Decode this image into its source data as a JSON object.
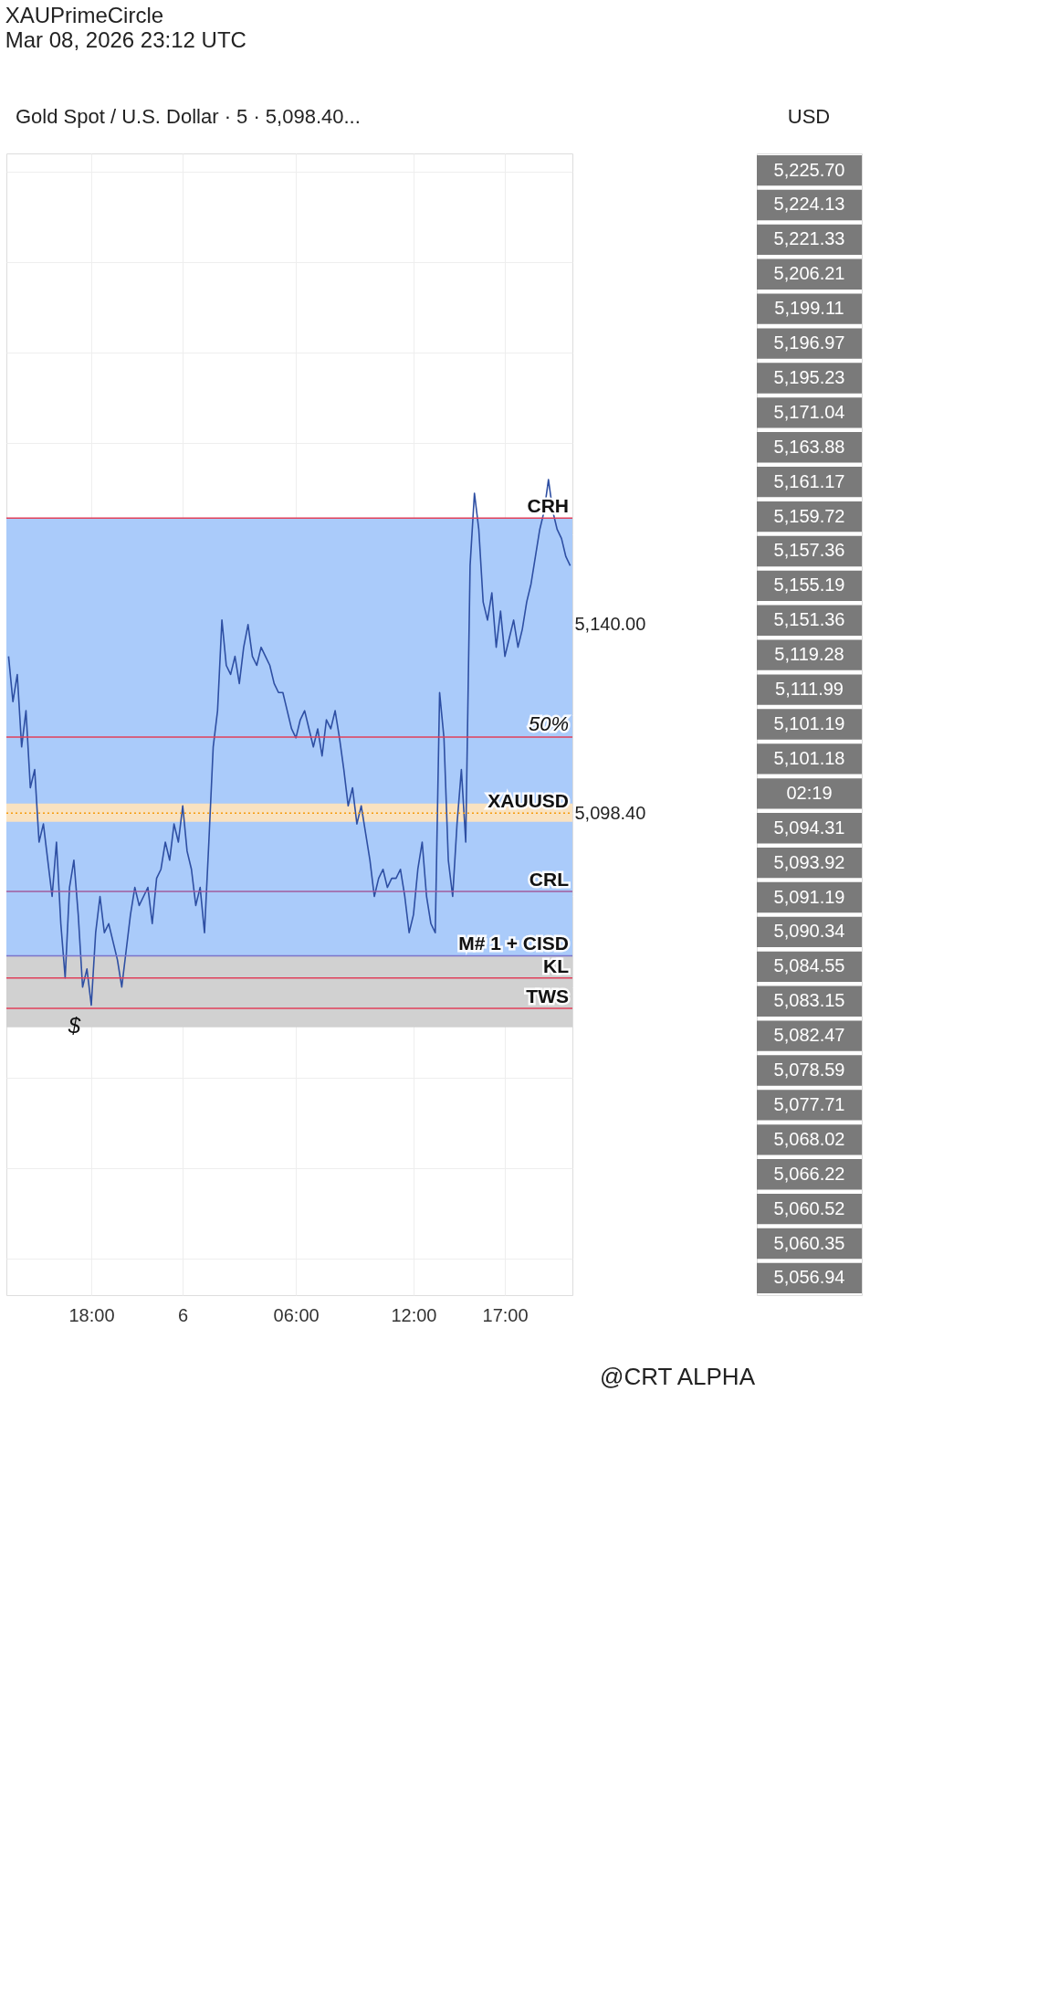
{
  "chart_data": {
    "type": "line",
    "title": "XAUPrimeCircle",
    "subtitle": "Mar 08, 2026 23:12 UTC",
    "categories": [
      null,
      null,
      null,
      null,
      null,
      null,
      null,
      null,
      null,
      null,
      null,
      null,
      null,
      null,
      null,
      null,
      null,
      null,
      null,
      "18:00",
      null,
      null,
      null,
      null,
      null,
      null,
      null,
      null,
      null,
      null,
      null,
      null,
      null,
      null,
      null,
      null,
      null,
      null,
      null,
      null,
      "6",
      null,
      null,
      null,
      null,
      null,
      null,
      null,
      null,
      null,
      null,
      null,
      null,
      null,
      null,
      null,
      null,
      null,
      null,
      null,
      null,
      null,
      null,
      null,
      null,
      null,
      "06:00",
      null,
      null,
      null,
      null,
      null,
      null,
      null,
      null,
      null,
      null,
      null,
      null,
      null,
      null,
      null,
      null,
      null,
      null,
      null,
      null,
      null,
      null,
      null,
      null,
      null,
      null,
      "12:00",
      null,
      null,
      null,
      null,
      null,
      null,
      null,
      null,
      null,
      null,
      null,
      null,
      null,
      null,
      null,
      null,
      null,
      null,
      null,
      null,
      "17:00",
      null,
      null,
      null,
      null,
      null,
      null,
      null,
      null,
      null,
      null,
      null,
      null,
      null,
      null,
      null
    ],
    "series": [
      {
        "color": "#2e4fa3",
        "values": [
          5133,
          5123,
          5129,
          5113,
          5121,
          5104,
          5108,
          5092,
          5096,
          5088,
          5080,
          5092,
          5074,
          5062,
          5082,
          5088,
          5076,
          5060,
          5064,
          5056,
          5072,
          5080,
          5072,
          5074,
          5070,
          5066,
          5060,
          5068,
          5076,
          5082,
          5078,
          5080,
          5082,
          5074,
          5084,
          5086,
          5092,
          5088,
          5096,
          5092,
          5100,
          5090,
          5086,
          5078,
          5082,
          5072,
          5092,
          5113,
          5121,
          5141,
          5131,
          5129,
          5133,
          5127,
          5135,
          5140,
          5133,
          5131,
          5135,
          5133,
          5131,
          5127,
          5125,
          5125,
          5121,
          5117,
          5115,
          5119,
          5121,
          5117,
          5113,
          5117,
          5111,
          5119,
          5117,
          5121,
          5115,
          5108,
          5100,
          5104,
          5096,
          5100,
          5094,
          5088,
          5080,
          5084,
          5086,
          5082,
          5084,
          5084,
          5086,
          5080,
          5072,
          5076,
          5086,
          5092,
          5080,
          5074,
          5072,
          5125,
          5115,
          5088,
          5080,
          5096,
          5108,
          5092,
          5153,
          5169,
          5161,
          5145,
          5141,
          5147,
          5135,
          5143,
          5133,
          5137,
          5141,
          5135,
          5139,
          5145,
          5149,
          5155,
          5161,
          5165,
          5172,
          5165,
          5161,
          5159,
          5155,
          5153
        ]
      }
    ],
    "ylim": [
      4992,
      5244
    ],
    "yticks": [
      {
        "value": 5000,
        "label": null
      },
      {
        "value": 5020,
        "label": null
      },
      {
        "value": 5040,
        "label": null
      },
      {
        "value": 5060,
        "label": null
      },
      {
        "value": 5080,
        "label": null
      },
      {
        "value": 5098.4,
        "label": "5,098.40"
      },
      {
        "value": 5100,
        "label": null
      },
      {
        "value": 5120,
        "label": null
      },
      {
        "value": 5140,
        "label": "5,140.00"
      },
      {
        "value": 5160,
        "label": null
      },
      {
        "value": 5180,
        "label": null
      },
      {
        "value": 5200,
        "label": null
      },
      {
        "value": 5220,
        "label": null
      },
      {
        "value": 5240,
        "label": null
      }
    ],
    "grid": true,
    "line_style": "solid",
    "bands": [
      {
        "axis": "y",
        "from": 5066.9,
        "to": 5163.5,
        "color": "#a5c8fa"
      },
      {
        "axis": "y",
        "from": 5051.1,
        "to": 5066.9,
        "color": "#cfcfcf"
      },
      {
        "axis": "y",
        "from": 5096.5,
        "to": 5100.5,
        "color": "#fde3bd"
      }
    ],
    "ref_lines": [
      {
        "axis": "y",
        "value": 5163.5,
        "label": "CRH",
        "color": "#e0405a"
      },
      {
        "axis": "y",
        "value": 5115.2,
        "color": "#e0405a"
      },
      {
        "axis": "y",
        "value": 5098.4,
        "label": "XAUUSD",
        "color": "#f59a0c",
        "line_style": "dotted"
      },
      {
        "axis": "y",
        "value": 5081.1,
        "label": "CRL",
        "color": "#a05c9c"
      },
      {
        "axis": "y",
        "value": 5066.9,
        "label": "M# 1 + CISD",
        "color": "#7b73c9"
      },
      {
        "axis": "y",
        "value": 5062.0,
        "label": "KL",
        "color": "#e0405a"
      },
      {
        "axis": "y",
        "value": 5055.3,
        "label": "TWS",
        "color": "#e0405a"
      }
    ],
    "annotations": [
      "Gold Spot / U.S. Dollar · 5 · 5,098.40...",
      "USD",
      "5,225.70",
      "5,224.13",
      "5,221.33",
      "5,206.21",
      "5,199.11",
      "5,196.97",
      "5,195.23",
      "5,171.04",
      "5,163.88",
      "5,161.17",
      "5,159.72",
      "5,157.36",
      "5,155.19",
      "5,151.36",
      "5,119.28",
      "5,111.99",
      "5,101.19",
      "5,101.18",
      "02:19",
      "5,094.31",
      "5,093.92",
      "5,091.19",
      "5,090.34",
      "5,084.55",
      "5,083.15",
      "5,082.47",
      "5,078.59",
      "5,077.71",
      "5,068.02",
      "5,066.22",
      "5,060.52",
      "5,060.35",
      "5,056.94",
      {
        "text": "50%",
        "y": 5115.2
      },
      "$",
      "@CRT ALPHA"
    ]
  }
}
